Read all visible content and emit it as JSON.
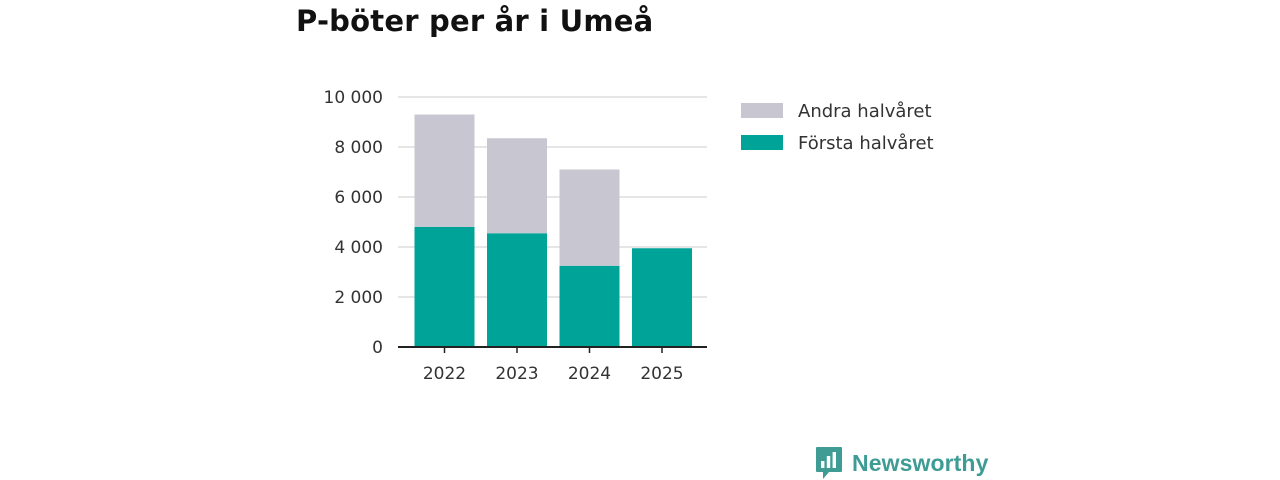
{
  "chart_data": {
    "type": "bar",
    "stacked": true,
    "title": "P-böter per år i Umeå",
    "categories": [
      "2022",
      "2023",
      "2024",
      "2025"
    ],
    "series": [
      {
        "name": "Första halvåret",
        "values": [
          4800,
          4550,
          3250,
          3950
        ],
        "color": "#00a398"
      },
      {
        "name": "Andra halvåret",
        "values": [
          4500,
          3800,
          3850,
          0
        ],
        "color": "#c8c7d1"
      }
    ],
    "y_ticks": [
      "0",
      "2 000",
      "4 000",
      "6 000",
      "8 000",
      "10 000"
    ],
    "ylim": [
      0,
      10000
    ],
    "xlabel": "",
    "ylabel": "",
    "grid": true,
    "legend": [
      {
        "label": "Andra halvåret",
        "color": "#c8c7d1"
      },
      {
        "label": "Första halvåret",
        "color": "#00a398"
      }
    ]
  },
  "brand": {
    "name": "Newsworthy",
    "icon": "newsworthy-logo-icon",
    "color": "#3e9c95"
  }
}
